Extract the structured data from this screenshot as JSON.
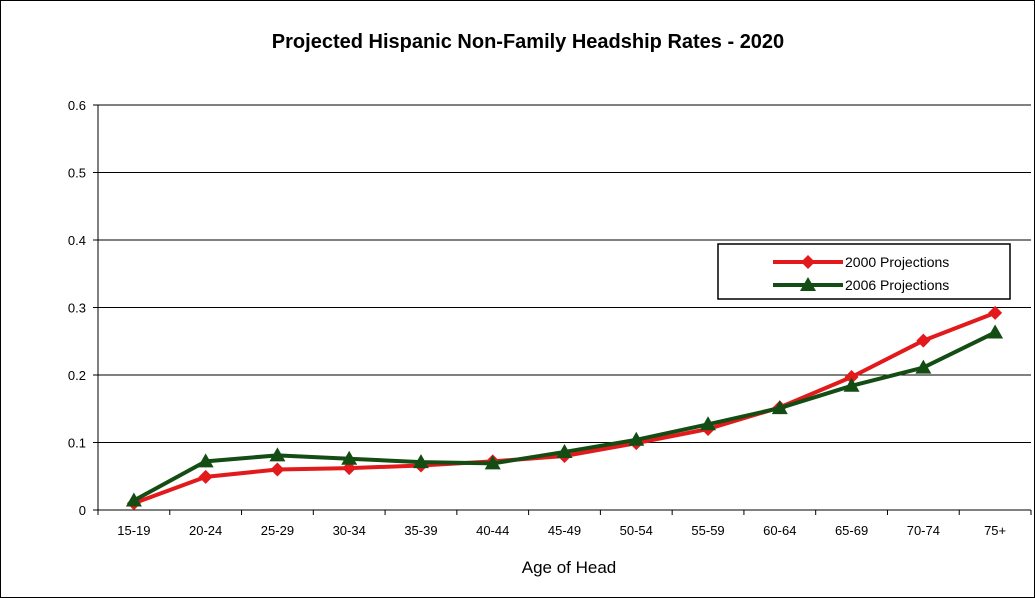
{
  "chart_data": {
    "type": "line",
    "title": "Projected Hispanic Non-Family Headship Rates - 2020",
    "xlabel": "Age of Head",
    "ylabel": "",
    "categories": [
      "15-19",
      "20-24",
      "25-29",
      "30-34",
      "35-39",
      "40-44",
      "45-49",
      "50-54",
      "55-59",
      "60-64",
      "65-69",
      "70-74",
      "75+"
    ],
    "ylim": [
      0,
      0.6
    ],
    "yticks": [
      "0",
      "0.1",
      "0.2",
      "0.3",
      "0.4",
      "0.5",
      "0.6"
    ],
    "grid": "horizontal",
    "legend_position": "right",
    "series": [
      {
        "name": "2000 Projections",
        "color": "#e31a1c",
        "marker": "diamond",
        "values": [
          0.01,
          0.049,
          0.06,
          0.062,
          0.066,
          0.072,
          0.08,
          0.099,
          0.12,
          0.152,
          0.197,
          0.251,
          0.292
        ]
      },
      {
        "name": "2006 Projections",
        "color": "#144d14",
        "marker": "triangle",
        "values": [
          0.014,
          0.072,
          0.081,
          0.076,
          0.071,
          0.069,
          0.086,
          0.104,
          0.127,
          0.151,
          0.184,
          0.211,
          0.263
        ]
      }
    ]
  }
}
